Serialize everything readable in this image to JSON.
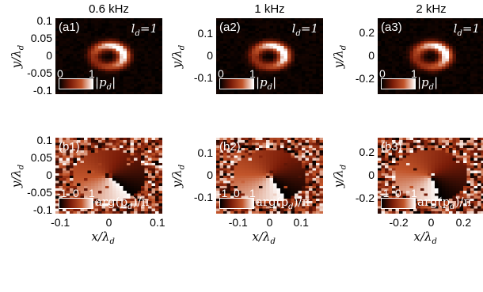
{
  "chart_data": {
    "type": "heatmap",
    "columns": [
      {
        "title": "0.6 kHz",
        "xticks": [
          "-0.1",
          "0",
          "0.1"
        ],
        "yticks": [
          "0.1",
          "0.05",
          "0",
          "-0.05",
          "-0.1"
        ],
        "range": 0.11
      },
      {
        "title": "1 kHz",
        "xticks": [
          "-0.1",
          "0",
          "0.1"
        ],
        "yticks": [
          "0.1",
          "0",
          "-0.1"
        ],
        "range": 0.17
      },
      {
        "title": "2 kHz",
        "xticks": [
          "-0.2",
          "0",
          "0.2"
        ],
        "yticks": [
          "0.2",
          "0",
          "-0.2"
        ],
        "range": 0.33
      }
    ],
    "rows": [
      {
        "panels": [
          "(a1)",
          "(a2)",
          "(a3)"
        ],
        "quantity": "amplitude",
        "colorbar_ticks": [
          "0",
          "1"
        ],
        "colorbar_label": "|p_d|"
      },
      {
        "panels": [
          "(b1)",
          "(b2)",
          "(b3)"
        ],
        "quantity": "phase",
        "colorbar_ticks": [
          "-1",
          "0",
          "1"
        ],
        "colorbar_label": "arg(p_d)/π"
      }
    ],
    "mode_label": "l_d = 1",
    "xlabel": "x/λ_d",
    "ylabel": "y/λ_d",
    "colormap": [
      "#000000",
      "#7a1c08",
      "#c2552a",
      "#ffffff"
    ]
  },
  "text": {
    "ld": "l",
    "ld_sub": "d",
    "ld_eq": "=1",
    "xlabel_main": "x/λ",
    "xlabel_sub": "d",
    "ylabel_main": "y/λ",
    "ylabel_sub": "d",
    "amp_label": "|p",
    "amp_sub": "d",
    "amp_end": "|",
    "phase_label": "arg(p",
    "phase_sub": "d",
    "phase_end": ")/π"
  }
}
